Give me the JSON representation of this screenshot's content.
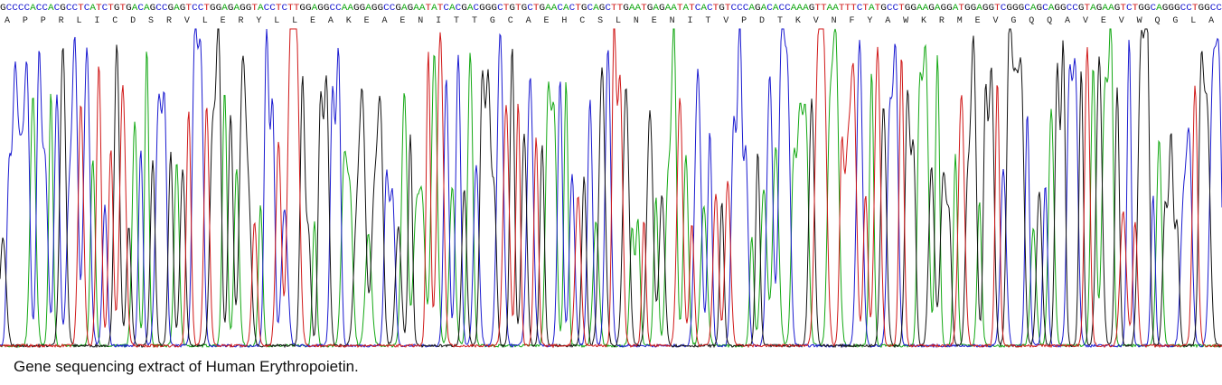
{
  "sequence": "GCCCCACCACGCCTCATCTGTGACAGCCGAGTCCTGGAGAGGTACCTCTTGGAGGCCAAGGAGGCCGAGAATATCACGACGGGCTGTGCTGAACACTGCAGCTTGAATGAGAATATCACTGTCCCAGACACCAAAGTTAATTTCTATGCCTGGAAGAGGATGGAGGTCGGGCAGCAGGCCGTAGAAGTCTGGCAGGGCCTGGCC",
  "amino_acids": [
    "A",
    "P",
    "P",
    "R",
    "L",
    "I",
    "C",
    "D",
    "S",
    "R",
    "V",
    "L",
    "E",
    "R",
    "Y",
    "L",
    "L",
    "E",
    "A",
    "K",
    "E",
    "A",
    "E",
    "N",
    "I",
    "T",
    "T",
    "G",
    "C",
    "A",
    "E",
    "H",
    "C",
    "S",
    "L",
    "N",
    "E",
    "N",
    "I",
    "T",
    "V",
    "P",
    "D",
    "T",
    "K",
    "V",
    "N",
    "F",
    "Y",
    "A",
    "W",
    "K",
    "R",
    "M",
    "E",
    "V",
    "G",
    "Q",
    "Q",
    "A",
    "V",
    "E",
    "V",
    "W",
    "Q",
    "G",
    "L",
    "A"
  ],
  "caption": "Gene sequencing extract of Human Erythropoietin."
}
